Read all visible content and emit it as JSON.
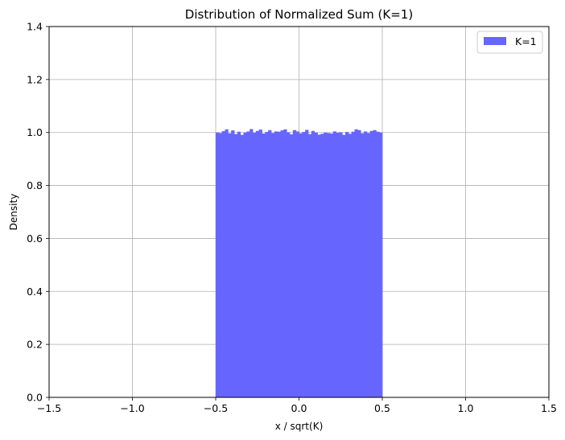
{
  "chart_data": {
    "type": "bar",
    "title": "Distribution of Normalized Sum (K=1)",
    "xlabel": "x / sqrt(K)",
    "ylabel": "Density",
    "xlim": [
      -1.5,
      1.5
    ],
    "ylim": [
      0,
      1.4
    ],
    "xticks": [
      "−1.5",
      "−1.0",
      "−0.5",
      "0.0",
      "0.5",
      "1.0",
      "1.5"
    ],
    "yticks": [
      "0.0",
      "0.2",
      "0.4",
      "0.6",
      "0.8",
      "1.0",
      "1.2",
      "1.4"
    ],
    "grid": true,
    "legend_position": "top-right",
    "bar_color": "#6666ff",
    "series": [
      {
        "name": "K=1",
        "bin_start": -0.5,
        "bin_end": 0.5,
        "densities": [
          1.0,
          0.998,
          1.005,
          1.012,
          0.997,
          1.008,
          0.994,
          1.003,
          0.991,
          1.0,
          1.004,
          1.013,
          0.999,
          1.006,
          1.011,
          0.996,
          1.002,
          1.009,
          0.998,
          1.004,
          1.003,
          1.008,
          1.012,
          1.001,
          0.993,
          1.009,
          1.004,
          0.997,
          1.002,
          1.01,
          0.994,
          1.006,
          1.0,
          0.992,
          0.995,
          1.0,
          0.998,
          0.996,
          1.004,
          0.999,
          1.001,
          0.991,
          1.002,
          0.995,
          1.003,
          1.012,
          1.009,
          0.997,
          1.004,
          0.998,
          1.006,
          1.009,
          1.003,
          1.0
        ]
      }
    ]
  }
}
